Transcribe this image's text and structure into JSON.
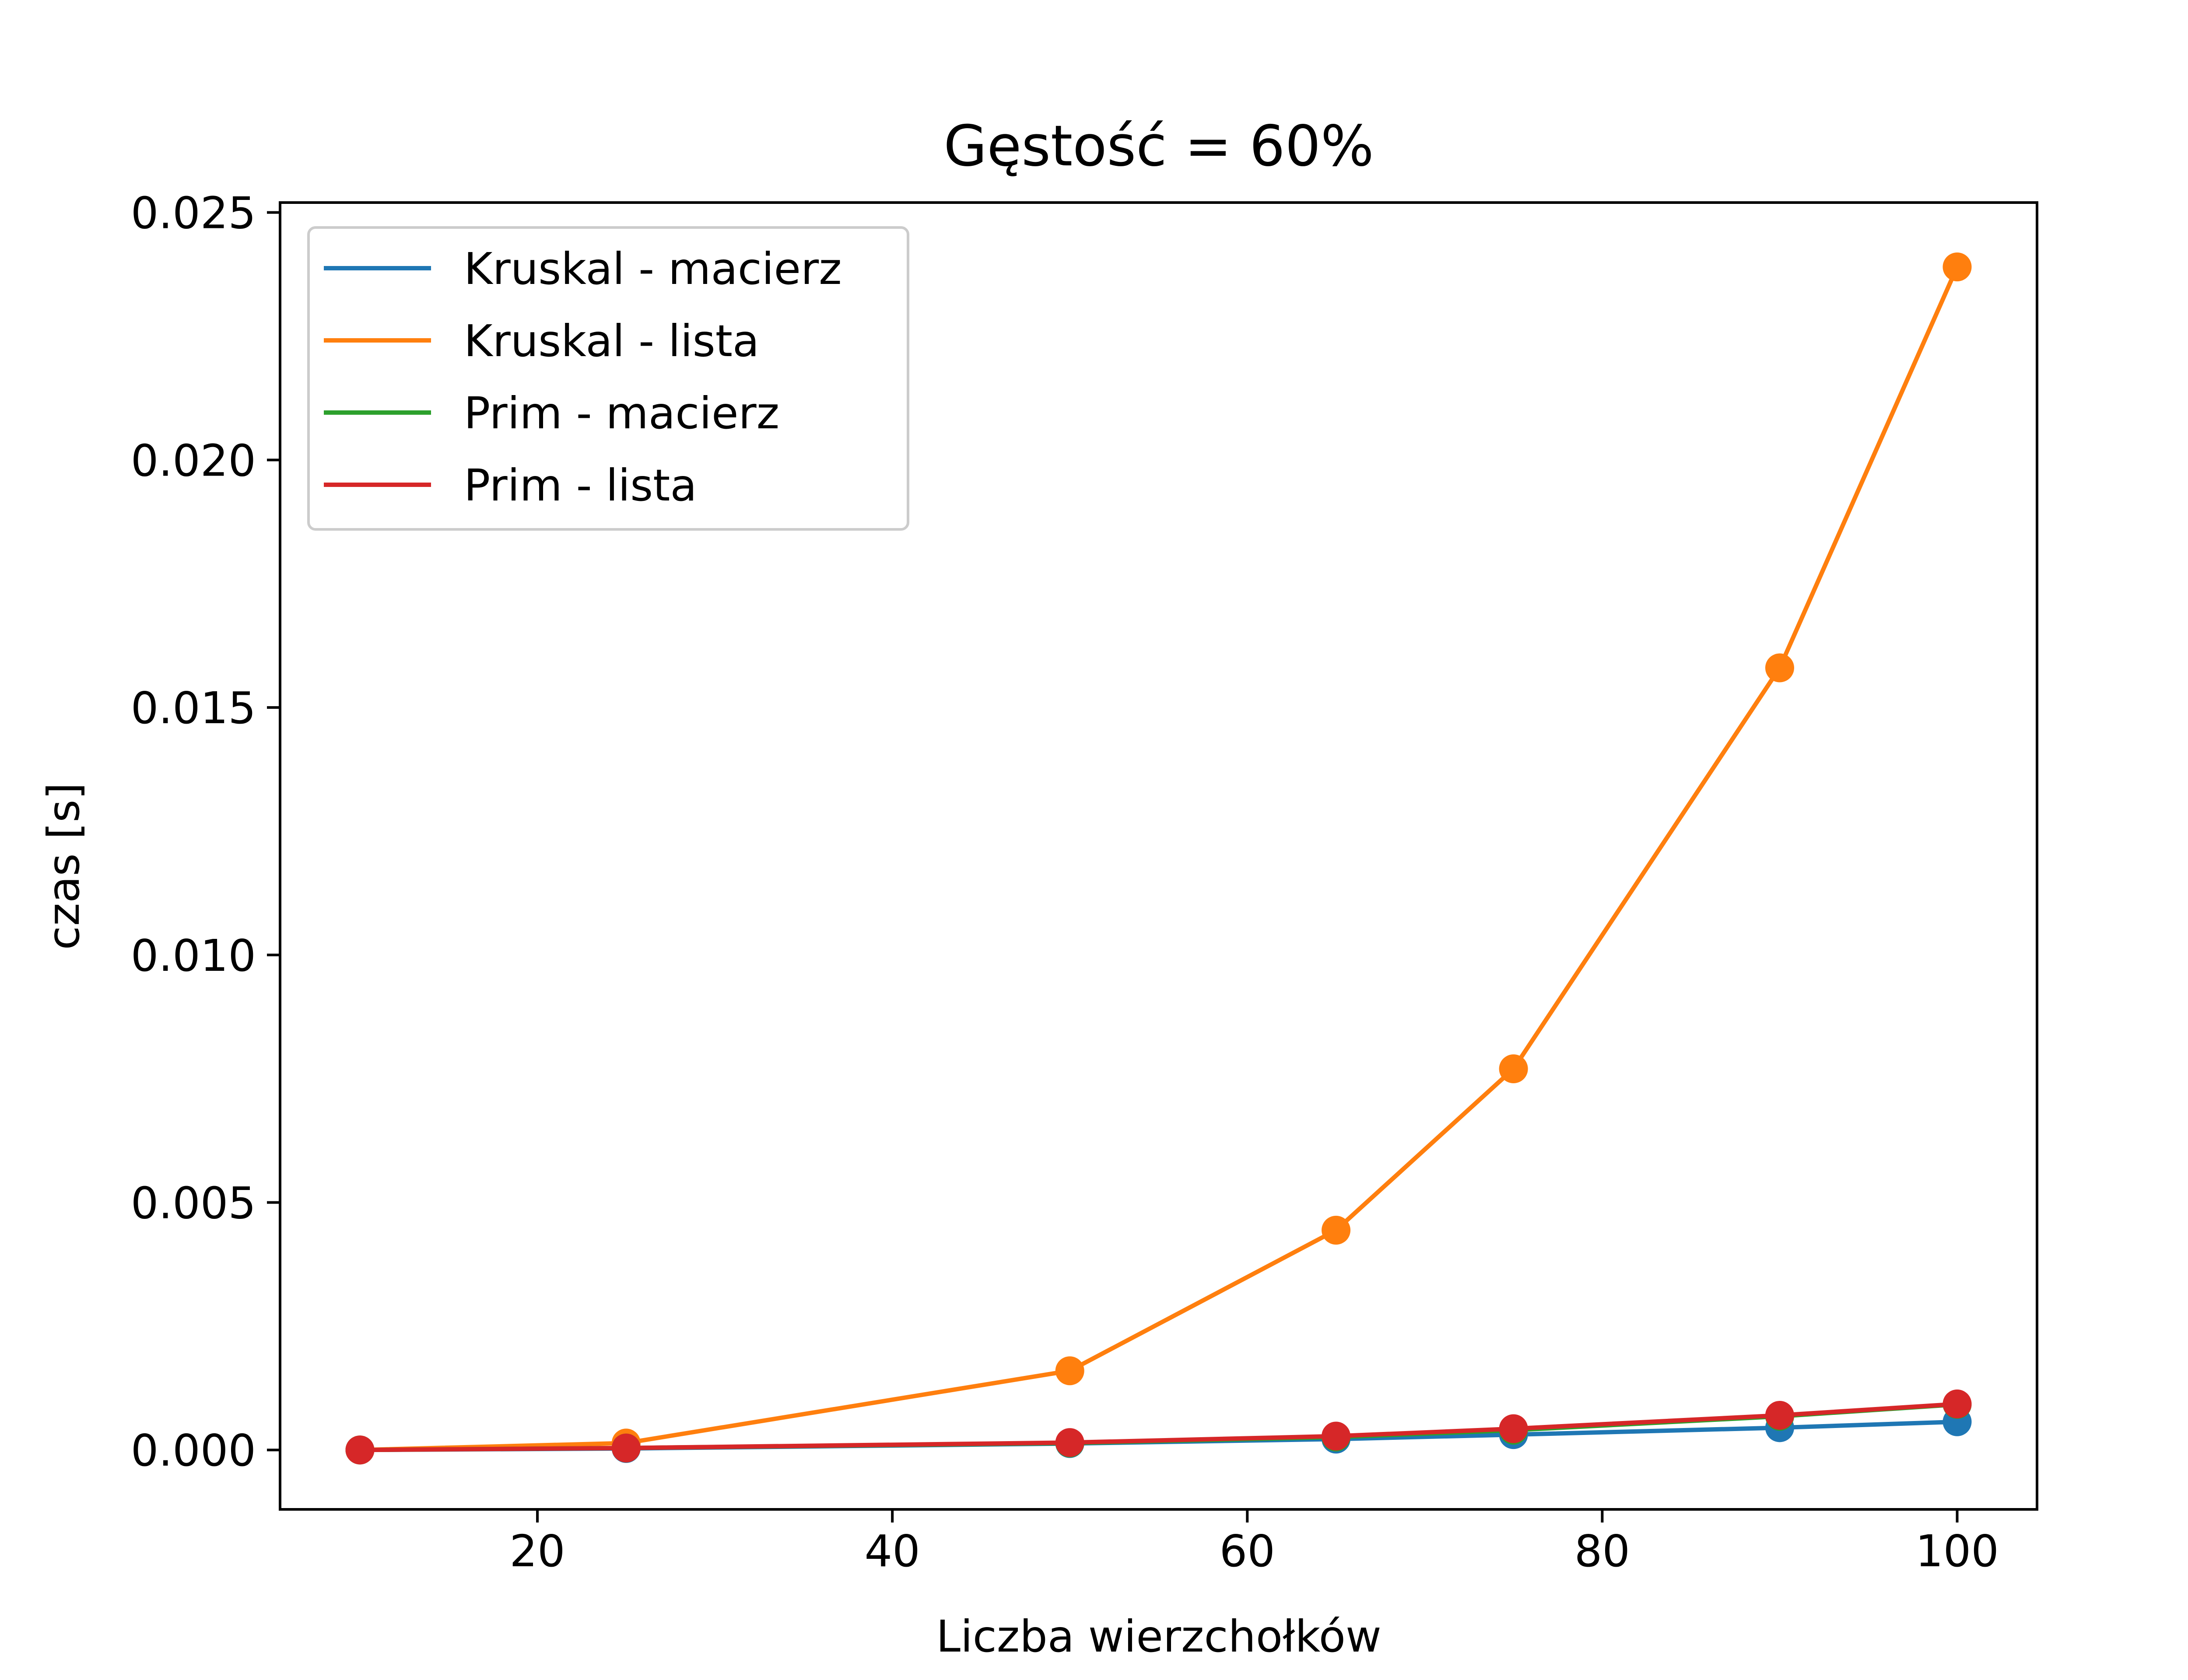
{
  "chart_data": {
    "type": "line",
    "title": "Gęstość = 60%",
    "xlabel": "Liczba wierzchołków",
    "ylabel": "czas [s]",
    "xlim": [
      5.5,
      104.5
    ],
    "ylim": [
      -0.0012,
      0.0252
    ],
    "x_ticks": [
      20,
      40,
      60,
      80,
      100
    ],
    "y_ticks": [
      0.0,
      0.005,
      0.01,
      0.015,
      0.02,
      0.025
    ],
    "y_tick_labels": [
      "0.000",
      "0.005",
      "0.010",
      "0.015",
      "0.020",
      "0.025"
    ],
    "grid": false,
    "legend_position": "upper-left",
    "x": [
      10,
      25,
      50,
      65,
      75,
      90,
      100
    ],
    "series": [
      {
        "name": "Kruskal - macierz",
        "color": "#1f77b4",
        "values": [
          0.0,
          3e-05,
          0.00013,
          0.00022,
          0.00031,
          0.00045,
          0.00057
        ]
      },
      {
        "name": "Kruskal - lista",
        "color": "#ff7f0e",
        "values": [
          0.0,
          0.00014,
          0.0016,
          0.00444,
          0.0077,
          0.0158,
          0.0239
        ]
      },
      {
        "name": "Prim - macierz",
        "color": "#2ca02c",
        "values": [
          0.0,
          4e-05,
          0.00014,
          0.00026,
          0.0004,
          0.00068,
          0.00092
        ]
      },
      {
        "name": "Prim - lista",
        "color": "#d62728",
        "values": [
          0.0,
          4e-05,
          0.00015,
          0.00028,
          0.00043,
          0.0007,
          0.00093
        ]
      }
    ]
  }
}
